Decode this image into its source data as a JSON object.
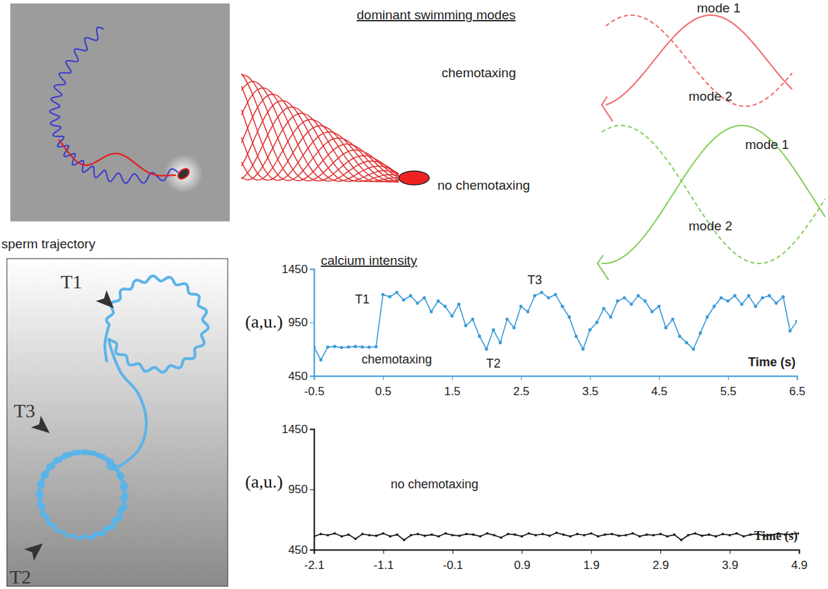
{
  "chart_data": [
    {
      "type": "line",
      "title": "calcium intensity",
      "xlabel": "Time (s)",
      "ylabel": "(a,u.)",
      "xlim": [
        -0.5,
        6.5
      ],
      "xticks": [
        -0.5,
        0.5,
        1.5,
        2.5,
        3.5,
        4.5,
        5.5,
        6.5
      ],
      "ylim": [
        450,
        1450
      ],
      "yticks": [
        450,
        950,
        1450
      ],
      "annotations": [
        {
          "text": "T1",
          "x": 0.2,
          "y": 1130
        },
        {
          "text": "T2",
          "x": 2.1,
          "y": 525
        },
        {
          "text": "T3",
          "x": 2.7,
          "y": 1310
        },
        {
          "text": "chemotaxing",
          "x": 0.7,
          "y": 566
        }
      ],
      "series": [
        {
          "color": "#3b9ad9",
          "marker": "circle",
          "x": [
            -0.5,
            -0.4,
            -0.3,
            -0.2,
            -0.1,
            0,
            0.1,
            0.2,
            0.3,
            0.4,
            0.5,
            0.6,
            0.7,
            0.8,
            0.9,
            1,
            1.1,
            1.2,
            1.3,
            1.4,
            1.5,
            1.6,
            1.7,
            1.8,
            1.9,
            2,
            2.1,
            2.2,
            2.3,
            2.4,
            2.5,
            2.6,
            2.7,
            2.8,
            2.9,
            3,
            3.1,
            3.2,
            3.3,
            3.4,
            3.5,
            3.6,
            3.7,
            3.8,
            3.9,
            4,
            4.1,
            4.2,
            4.3,
            4.4,
            4.5,
            4.6,
            4.7,
            4.8,
            4.9,
            5,
            5.1,
            5.2,
            5.3,
            5.4,
            5.5,
            5.6,
            5.7,
            5.8,
            5.9,
            6,
            6.1,
            6.2,
            6.3,
            6.4,
            6.5
          ],
          "values": [
            720,
            600,
            720,
            725,
            715,
            720,
            725,
            720,
            718,
            722,
            1210,
            1190,
            1230,
            1160,
            1200,
            1130,
            1180,
            1050,
            1150,
            1100,
            1010,
            1120,
            920,
            980,
            820,
            700,
            880,
            760,
            980,
            900,
            1100,
            1050,
            1200,
            1230,
            1180,
            1210,
            1100,
            1000,
            820,
            700,
            880,
            950,
            1080,
            1000,
            1150,
            1180,
            1120,
            1200,
            1150,
            1050,
            1100,
            900,
            980,
            820,
            760,
            700,
            850,
            1000,
            1100,
            1180,
            1150,
            1200,
            1120,
            1200,
            1100,
            1180,
            1200,
            1130,
            1190,
            870,
            960
          ]
        }
      ]
    },
    {
      "type": "line",
      "xlabel": "Time (s)",
      "ylabel": "(a,u.)",
      "xlim": [
        -2.1,
        4.9
      ],
      "xticks": [
        -2.1,
        -1.1,
        -0.1,
        0.9,
        1.9,
        2.9,
        3.9,
        4.9
      ],
      "ylim": [
        450,
        1450
      ],
      "yticks": [
        450,
        950,
        1450
      ],
      "annotations": [
        {
          "text": "no chemotaxing",
          "x": -0.36,
          "y": 959
        }
      ],
      "series": [
        {
          "color": "#111111",
          "marker": "square",
          "x": [
            -2.1,
            -2,
            -1.9,
            -1.8,
            -1.7,
            -1.6,
            -1.5,
            -1.4,
            -1.3,
            -1.2,
            -1.1,
            -1,
            -0.9,
            -0.8,
            -0.7,
            -0.6,
            -0.5,
            -0.4,
            -0.3,
            -0.2,
            -0.1,
            0,
            0.1,
            0.2,
            0.3,
            0.4,
            0.5,
            0.6,
            0.7,
            0.8,
            0.9,
            1,
            1.1,
            1.2,
            1.3,
            1.4,
            1.5,
            1.6,
            1.7,
            1.8,
            1.9,
            2,
            2.1,
            2.2,
            2.3,
            2.4,
            2.5,
            2.6,
            2.7,
            2.8,
            2.9,
            3,
            3.1,
            3.2,
            3.3,
            3.4,
            3.5,
            3.6,
            3.7,
            3.8,
            3.9,
            4,
            4.1,
            4.2,
            4.3,
            4.4,
            4.5,
            4.6,
            4.7,
            4.8,
            4.9
          ],
          "values": [
            560,
            580,
            570,
            585,
            560,
            575,
            540,
            580,
            570,
            565,
            585,
            560,
            575,
            530,
            570,
            580,
            565,
            575,
            560,
            585,
            570,
            565,
            580,
            575,
            560,
            585,
            570,
            550,
            580,
            575,
            560,
            585,
            570,
            580,
            565,
            590,
            575,
            560,
            580,
            570,
            585,
            560,
            575,
            580,
            565,
            570,
            585,
            560,
            575,
            570,
            580,
            560,
            575,
            530,
            570,
            585,
            565,
            575,
            560,
            580,
            570,
            585,
            560,
            575,
            580,
            565,
            570,
            585,
            575,
            580,
            585
          ]
        }
      ]
    }
  ],
  "panels": {
    "swimming_modes": {
      "title": "dominant swimming modes",
      "states": [
        "chemotaxing",
        "no chemotaxing"
      ],
      "modes": [
        {
          "labels": [
            "mode 1",
            "mode 2"
          ],
          "color": "#f26b6b"
        },
        {
          "labels": [
            "mode 1",
            "mode 2"
          ],
          "color": "#86cf5e"
        }
      ]
    },
    "trajectory": {
      "title": "sperm trajectory",
      "markers": [
        "T1",
        "T2",
        "T3"
      ]
    }
  }
}
